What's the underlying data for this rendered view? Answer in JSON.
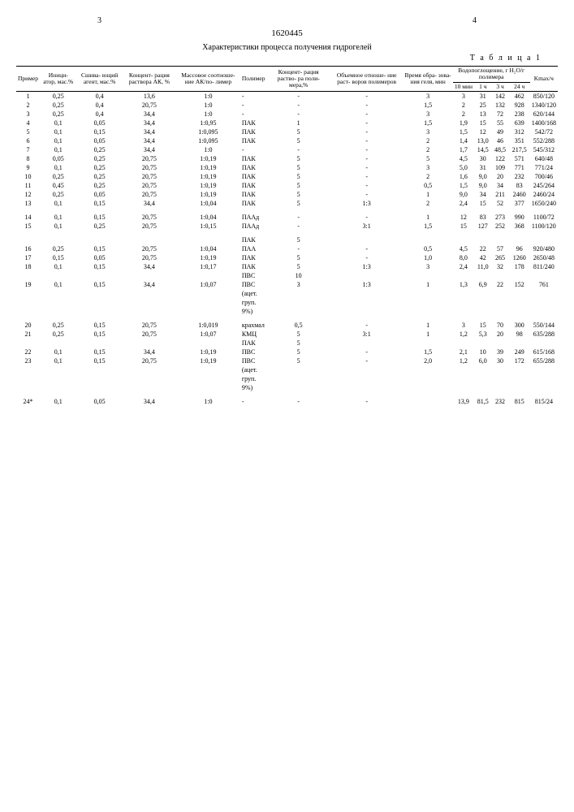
{
  "page_left": "3",
  "page_right": "4",
  "doc_number": "1620445",
  "title": "Характеристики процесса получения гидрогелей",
  "table_label": "Т а б л и ц а 1",
  "columns": [
    "Пример",
    "Иници-\nатор,\nмас.%",
    "Сшива-\nющий\nагент,\nмас.%",
    "Концент-\nрация\nраствора\nАК, %",
    "Массовое\nсоотноше-\nние АК/по-\nлимер",
    "Полимер",
    "Концент-\nрация\nраство-\nра поли-\nмера,%",
    "Объемное\nотноше-\nние раст-\nворов\nполимеров",
    "Время\nобра-\nзова-\nния\nгеля,\nмин",
    "Водопоглощение, г H₂O/г полимера",
    "Kmax/ч"
  ],
  "sub_columns": [
    "10 мин",
    "1 ч",
    "3 ч",
    "24 ч"
  ],
  "rows": [
    [
      "1",
      "0,25",
      "0,4",
      "13,6",
      "1:0",
      "-",
      "-",
      "-",
      "3",
      "3",
      "31",
      "142",
      "462",
      "850/120"
    ],
    [
      "2",
      "0,25",
      "0,4",
      "20,75",
      "1:0",
      "-",
      "-",
      "-",
      "1,5",
      "2",
      "25",
      "132",
      "928",
      "1340/120"
    ],
    [
      "3",
      "0,25",
      "0,4",
      "34,4",
      "1:0",
      "-",
      "-",
      "-",
      "3",
      "2",
      "13",
      "72",
      "238",
      "620/144"
    ],
    [
      "4",
      "0,1",
      "0,05",
      "34,4",
      "1:0,95",
      "ПАК",
      "1",
      "-",
      "1,5",
      "1,9",
      "15",
      "55",
      "639",
      "1400/168"
    ],
    [
      "5",
      "0,1",
      "0,15",
      "34,4",
      "1:0,095",
      "ПАК",
      "5",
      "-",
      "3",
      "1,5",
      "12",
      "49",
      "312",
      "542/72"
    ],
    [
      "6",
      "0,1",
      "0,05",
      "34,4",
      "1:0,095",
      "ПАК",
      "5",
      "-",
      "2",
      "1,4",
      "13,0",
      "46",
      "351",
      "552/288"
    ],
    [
      "7",
      "0,1",
      "0,25",
      "34,4",
      "1:0",
      "-",
      "-",
      "-",
      "2",
      "1,7",
      "14,5",
      "48,5",
      "217,5",
      "545/312"
    ],
    [
      "8",
      "0,05",
      "0,25",
      "20,75",
      "1:0,19",
      "ПАК",
      "5",
      "-",
      "5",
      "4,5",
      "30",
      "122",
      "571",
      "640/48"
    ],
    [
      "9",
      "0,1",
      "0,25",
      "20,75",
      "1:0,19",
      "ПАК",
      "5",
      "-",
      "3",
      "5,0",
      "31",
      "109",
      "771",
      "771/24"
    ],
    [
      "10",
      "0,25",
      "0,25",
      "20,75",
      "1:0,19",
      "ПАК",
      "5",
      "-",
      "2",
      "1,6",
      "9,0",
      "20",
      "232",
      "700/46"
    ],
    [
      "11",
      "0,45",
      "0,25",
      "20,75",
      "1:0,19",
      "ПАК",
      "5",
      "-",
      "0,5",
      "1,5",
      "9,0",
      "34",
      "83",
      "245/264"
    ],
    [
      "12",
      "0,25",
      "0,05",
      "20,75",
      "1:0,19",
      "ПАК",
      "5",
      "-",
      "1",
      "9,0",
      "34",
      "211",
      "2460",
      "2460/24"
    ],
    [
      "13",
      "0,1",
      "0,15",
      "34,4",
      "1:0,04",
      "ПАК",
      "5",
      "1:3",
      "2",
      "2,4",
      "15",
      "52",
      "377",
      "1650/240"
    ],
    [
      "14",
      "0,1",
      "0,15",
      "20,75",
      "1:0,04",
      "ПААд",
      "-",
      "-",
      "1",
      "12",
      "83",
      "273",
      "990",
      "1100/72"
    ],
    [
      "15",
      "0,1",
      "0,25",
      "20,75",
      "1:0,15",
      "ПААд",
      "-",
      "3:1",
      "1,5",
      "15",
      "127",
      "252",
      "368",
      "1100/120"
    ],
    [
      "",
      "",
      "",
      "",
      "",
      "ПАК",
      "5",
      "",
      "",
      "",
      "",
      "",
      "",
      ""
    ],
    [
      "16",
      "0,25",
      "0,15",
      "20,75",
      "1:0,04",
      "ПАА",
      "-",
      "-",
      "0,5",
      "4,5",
      "22",
      "57",
      "96",
      "920/480"
    ],
    [
      "17",
      "0,15",
      "0,05",
      "20,75",
      "1:0,19",
      "ПАК",
      "5",
      "-",
      "1,0",
      "8,0",
      "42",
      "265",
      "1260",
      "2650/48"
    ],
    [
      "18",
      "0,1",
      "0,15",
      "34,4",
      "1:0,17",
      "ПАК",
      "5",
      "1:3",
      "3",
      "2,4",
      "11,0",
      "32",
      "178",
      "811/240"
    ],
    [
      "",
      "",
      "",
      "",
      "",
      "ПВС",
      "10",
      "",
      "",
      "",
      "",
      "",
      "",
      ""
    ],
    [
      "19",
      "0,1",
      "0,15",
      "34,4",
      "1:0,07",
      "ПВС",
      "3",
      "1:3",
      "1",
      "1,3",
      "6,9",
      "22",
      "152",
      "761"
    ],
    [
      "",
      "",
      "",
      "",
      "",
      "(ацет.",
      "",
      "",
      "",
      "",
      "",
      "",
      "",
      ""
    ],
    [
      "",
      "",
      "",
      "",
      "",
      "груп.",
      "",
      "",
      "",
      "",
      "",
      "",
      "",
      ""
    ],
    [
      "",
      "",
      "",
      "",
      "",
      "9%)",
      "",
      "",
      "",
      "",
      "",
      "",
      "",
      ""
    ],
    [
      "20",
      "0,25",
      "0,15",
      "20,75",
      "1:0,019",
      "крахмал",
      "0,5",
      "-",
      "1",
      "3",
      "15",
      "70",
      "300",
      "550/144"
    ],
    [
      "21",
      "0,25",
      "0,15",
      "20,75",
      "1:0,07",
      "КМЦ",
      "5",
      "3:1",
      "1",
      "1,2",
      "5,3",
      "20",
      "98",
      "635/288"
    ],
    [
      "",
      "",
      "",
      "",
      "",
      "ПАК",
      "5",
      "",
      "",
      "",
      "",
      "",
      "",
      ""
    ],
    [
      "22",
      "0,1",
      "0,15",
      "34,4",
      "1:0,19",
      "ПВС",
      "5",
      "-",
      "1,5",
      "2,1",
      "10",
      "39",
      "249",
      "615/168"
    ],
    [
      "23",
      "0,1",
      "0,15",
      "20,75",
      "1:0,19",
      "ПВС",
      "5",
      "-",
      "2,0",
      "1,2",
      "6,0",
      "30",
      "172",
      "655/288"
    ],
    [
      "",
      "",
      "",
      "",
      "",
      "(ацет.",
      "",
      "",
      "",
      "",
      "",
      "",
      "",
      ""
    ],
    [
      "",
      "",
      "",
      "",
      "",
      "груп.",
      "",
      "",
      "",
      "",
      "",
      "",
      "",
      ""
    ],
    [
      "",
      "",
      "",
      "",
      "",
      "9%)",
      "",
      "",
      "",
      "",
      "",
      "",
      "",
      ""
    ],
    [
      "24*",
      "0,1",
      "0,05",
      "34,4",
      "1:0",
      "-",
      "-",
      "-",
      "",
      "13,9",
      "81,5",
      "232",
      "815",
      "815/24"
    ]
  ]
}
